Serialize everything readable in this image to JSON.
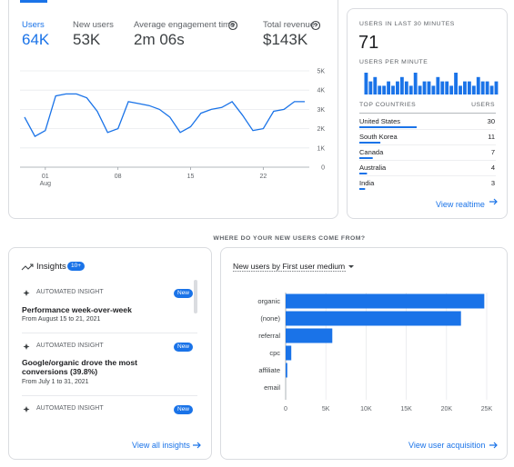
{
  "metrics": [
    {
      "label": "Users",
      "value": "64K"
    },
    {
      "label": "New users",
      "value": "53K"
    },
    {
      "label": "Average engagement time",
      "value": "2m 06s"
    },
    {
      "label": "Total revenue",
      "value": "$143K"
    }
  ],
  "realtime": {
    "title": "USERS IN LAST 30 MINUTES",
    "count": 71,
    "per_minute_label": "USERS PER MINUTE",
    "table": {
      "headers": [
        "TOP COUNTRIES",
        "USERS"
      ],
      "rows": [
        [
          "United States",
          30
        ],
        [
          "South Korea",
          11
        ],
        [
          "Canada",
          7
        ],
        [
          "Australia",
          4
        ],
        [
          "India",
          3
        ]
      ]
    },
    "link": "View realtime"
  },
  "section_heading": "WHERE DO YOUR NEW USERS COME FROM?",
  "insights": {
    "title": "Insights",
    "badge": "10+",
    "items": [
      {
        "label": "AUTOMATED INSIGHT",
        "badge": "New",
        "headline": "Performance week-over-week",
        "date": "From August 15 to 21, 2021"
      },
      {
        "label": "AUTOMATED INSIGHT",
        "badge": "New",
        "headline": "Google/organic drove the most conversions (39.8%)",
        "date": "From July 1 to 31, 2021"
      },
      {
        "label": "AUTOMATED INSIGHT",
        "badge": "New"
      }
    ],
    "link": "View all insights"
  },
  "acquisition": {
    "dropdown": "New users by First user medium",
    "link": "View user acquisition"
  },
  "chart_data": [
    {
      "type": "line",
      "categories": [
        null,
        null,
        "01",
        null,
        null,
        null,
        null,
        null,
        null,
        "08",
        null,
        null,
        null,
        null,
        null,
        null,
        "15",
        null,
        null,
        null,
        null,
        null,
        null,
        "22",
        null,
        null,
        null,
        null
      ],
      "x_secondary_label": "Aug",
      "values": [
        2600,
        1600,
        1900,
        3700,
        3800,
        3800,
        3600,
        2900,
        1800,
        2000,
        3400,
        3300,
        3200,
        3000,
        2600,
        1800,
        2100,
        2800,
        3000,
        3100,
        3400,
        2700,
        1900,
        2000,
        2900,
        3000,
        3400,
        3400
      ],
      "color": "#1a73e8",
      "ylim": [
        0,
        5000
      ],
      "yticks": [
        0,
        {
          "value": 1000,
          "label": "1K"
        },
        {
          "value": 2000,
          "label": "2K"
        },
        {
          "value": 3000,
          "label": "3K"
        },
        {
          "value": 4000,
          "label": "4K"
        },
        {
          "value": 5000,
          "label": "5K"
        }
      ],
      "grid": true
    },
    {
      "type": "bar",
      "values": [
        5,
        3,
        4,
        2,
        2,
        3,
        2,
        3,
        4,
        3,
        2,
        5,
        2,
        3,
        3,
        2,
        4,
        3,
        3,
        2,
        5,
        2,
        3,
        3,
        2,
        4,
        3,
        3,
        2,
        3
      ],
      "color": "#1a73e8"
    },
    {
      "type": "bar",
      "orientation": "horizontal",
      "categories": [
        "organic",
        "(none)",
        "referral",
        "cpc",
        "affiliate",
        "email"
      ],
      "values": [
        24700,
        21800,
        5800,
        700,
        200,
        0
      ],
      "color": "#1a73e8",
      "xlim": [
        0,
        25000
      ],
      "xticks": [
        0,
        {
          "value": 5000,
          "label": "5K"
        },
        {
          "value": 10000,
          "label": "10K"
        },
        {
          "value": 15000,
          "label": "15K"
        },
        {
          "value": 20000,
          "label": "20K"
        },
        {
          "value": 25000,
          "label": "25K"
        }
      ],
      "grid": true
    }
  ]
}
